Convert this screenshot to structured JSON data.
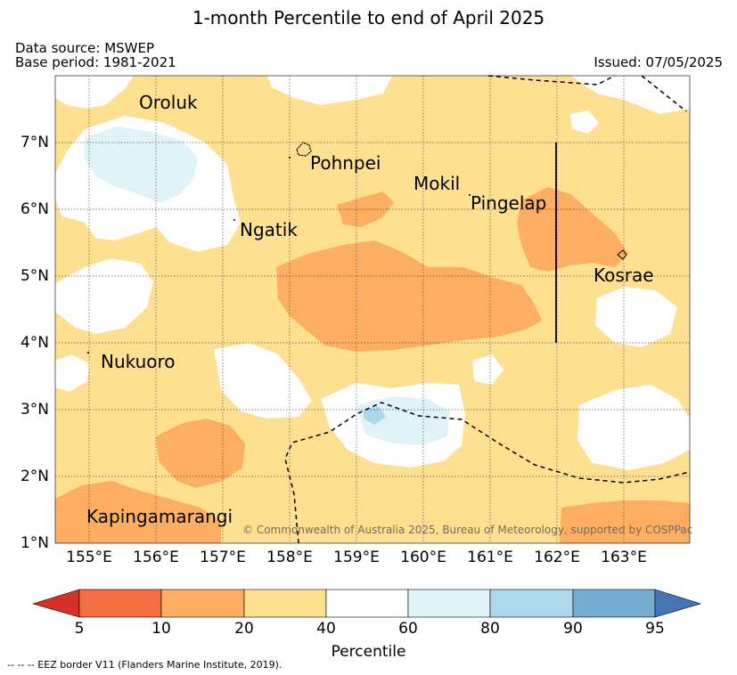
{
  "title": "1-month Percentile to end of April 2025",
  "data_source": "Data source: MSWEP",
  "base_period": "Base period: 1981-2021",
  "issued": "Issued: 07/05/2025",
  "longitude_labels": [
    "155°E",
    "156°E",
    "157°E",
    "158°E",
    "159°E",
    "160°E",
    "161°E",
    "162°E",
    "163°E"
  ],
  "latitude_labels": [
    "7°N",
    "6°N",
    "5°N",
    "4°N",
    "3°N",
    "2°N",
    "1°N"
  ],
  "places": {
    "oroluk": "Oroluk",
    "pohnpei": "Pohnpei",
    "mokil": "Mokil",
    "pingelap": "Pingelap",
    "ngatik": "Ngatik",
    "kosrae": "Kosrae",
    "nukuoro": "Nukuoro",
    "kapingamarangi": "Kapingamarangi"
  },
  "copyright": "© Commonwealth of Australia 2025, Bureau of Meteorology, supported by COSPPac",
  "colorbar": {
    "label": "Percentile",
    "ticks": [
      "5",
      "10",
      "20",
      "40",
      "60",
      "80",
      "90",
      "95"
    ],
    "colors": [
      "#d73027",
      "#f46d43",
      "#fdae61",
      "#fee090",
      "#ffffff",
      "#e0f3f8",
      "#abd9e9",
      "#74add1",
      "#4575b4"
    ]
  },
  "eez_note": "-- -- -- EEZ border V11 (Flanders Marine Institute, 2019)."
}
